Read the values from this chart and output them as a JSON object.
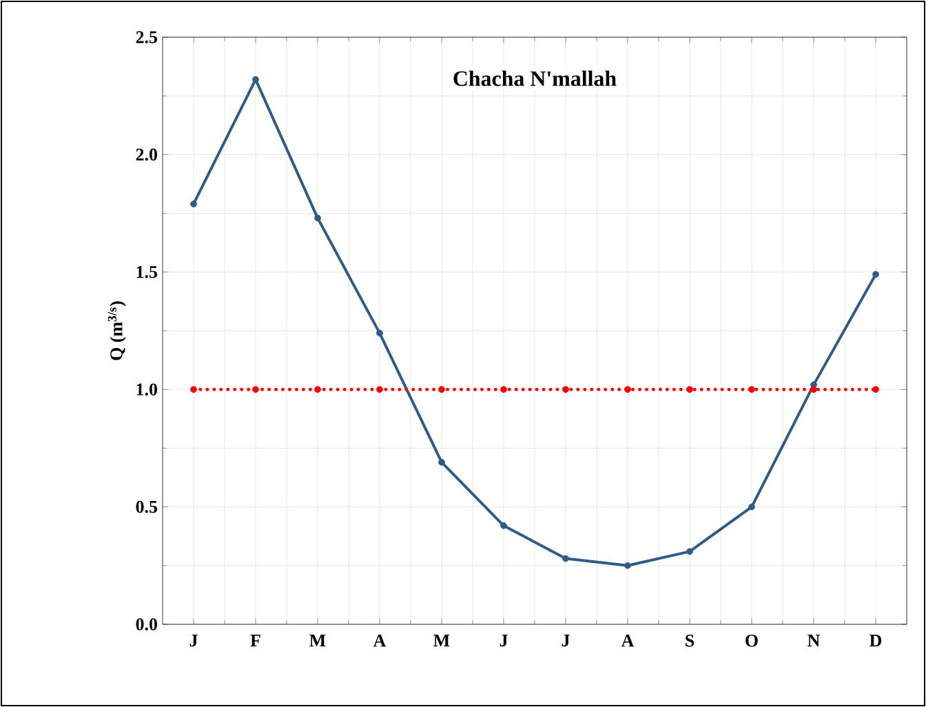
{
  "chart_data": {
    "type": "line",
    "title": "Chacha N'mallah",
    "ylabel": "Q (m$^{3/s}$)",
    "categories": [
      "J",
      "F",
      "M",
      "A",
      "M",
      "J",
      "J",
      "A",
      "S",
      "O",
      "N",
      "D"
    ],
    "series": [
      {
        "color": "#2e5b87",
        "values": [
          1.79,
          2.32,
          1.73,
          1.24,
          0.69,
          0.42,
          0.28,
          0.25,
          0.31,
          0.5,
          1.02,
          1.49
        ],
        "marker": "circle",
        "line_style": "solid"
      },
      {
        "color": "#ff0000",
        "values": [
          1.0,
          1.0,
          1.0,
          1.0,
          1.0,
          1.0,
          1.0,
          1.0,
          1.0,
          1.0,
          1.0,
          1.0
        ],
        "marker": "circle",
        "line_style": "dotted"
      }
    ],
    "ylim": [
      0,
      2.5
    ],
    "yticks": [
      {
        "value": 0,
        "label": "0.0"
      },
      {
        "value": 0.5,
        "label": "0.5"
      },
      {
        "value": 1,
        "label": "1.0"
      },
      {
        "value": 1.5,
        "label": "1.5"
      },
      {
        "value": 2,
        "label": "2.0"
      },
      {
        "value": 2.5,
        "label": "2.5"
      }
    ],
    "grid": true
  }
}
